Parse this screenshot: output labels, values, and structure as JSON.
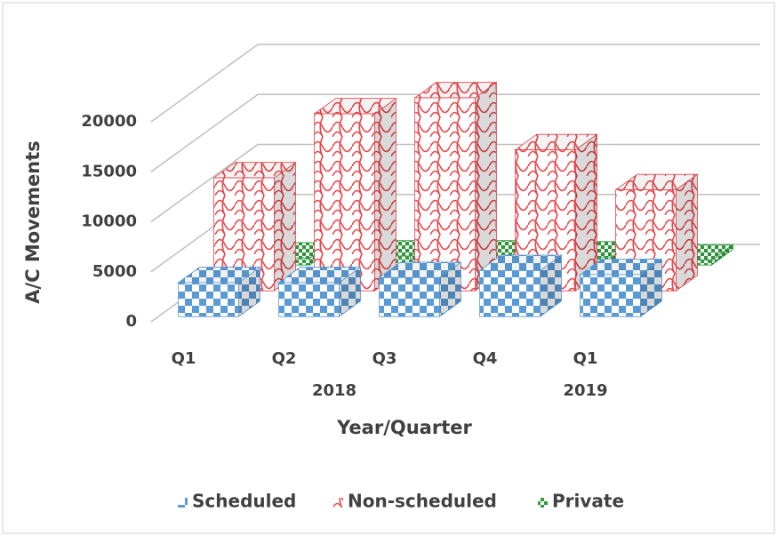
{
  "chart_data": {
    "type": "bar3d",
    "xlabel": "Year/Quarter",
    "ylabel": "A/C Movements",
    "categories": [
      "Q1",
      "Q2",
      "Q3",
      "Q4",
      "Q1"
    ],
    "groups": [
      {
        "label": "2018",
        "size": 4
      },
      {
        "label": "2019",
        "size": 1
      }
    ],
    "series": [
      {
        "name": "Scheduled",
        "color": "#5b9bd5",
        "values": [
          3400,
          3400,
          3900,
          4600,
          4200
        ]
      },
      {
        "name": "Non-scheduled",
        "color": "#e8474c",
        "values": [
          11300,
          17700,
          19300,
          14100,
          10100
        ]
      },
      {
        "name": "Private",
        "color": "#2e9e3e",
        "values": [
          700,
          900,
          900,
          800,
          500
        ]
      }
    ],
    "ylim": [
      0,
      20000
    ],
    "yticks": [
      0,
      5000,
      10000,
      15000,
      20000
    ],
    "grid": true,
    "legend": "bottom"
  }
}
